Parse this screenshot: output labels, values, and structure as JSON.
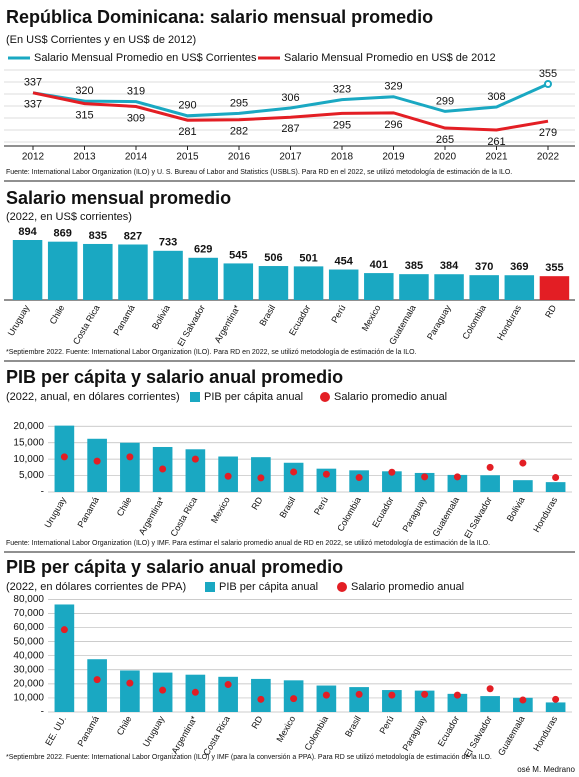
{
  "chart_data": [
    {
      "type": "line",
      "title": "República Dominicana: salario mensual promedio",
      "subtitle": "(En US$ Corrientes y en US$ de 2012)",
      "categories": [
        2012,
        2013,
        2014,
        2015,
        2016,
        2017,
        2018,
        2019,
        2020,
        2021,
        2022
      ],
      "series": [
        {
          "name": "Salario Mensual Promedio en US$ Corrientes",
          "color": "#1aa8c2",
          "values": [
            337,
            320,
            319,
            290,
            295,
            306,
            323,
            329,
            299,
            308,
            355
          ]
        },
        {
          "name": "Salario Mensual Promedio en US$ de 2012",
          "color": "#e31e24",
          "values": [
            337,
            315,
            309,
            281,
            282,
            287,
            295,
            296,
            265,
            261,
            279
          ]
        }
      ],
      "note": "Fuente: International Labor Organization (ILO) y U. S. Bureau of Labor and Statistics (USBLS). Para RD en el 2022, se utilizó metodología de estimación de la ILO."
    },
    {
      "type": "bar",
      "title": "Salario mensual promedio",
      "subtitle": "(2022, en US$ corrientes)",
      "categories": [
        "Uruguay",
        "Chile",
        "Costa Rica",
        "Panamá",
        "Bolivia",
        "El Salvador",
        "Argentina*",
        "Brasil",
        "Ecuador",
        "Perú",
        "Mexico",
        "Guatemala",
        "Paraguay",
        "Colombia",
        "Honduras",
        "RD"
      ],
      "values": [
        894,
        869,
        835,
        827,
        733,
        629,
        545,
        506,
        501,
        454,
        401,
        385,
        384,
        370,
        369,
        355
      ],
      "colors": [
        "#1aa8c2",
        "#1aa8c2",
        "#1aa8c2",
        "#1aa8c2",
        "#1aa8c2",
        "#1aa8c2",
        "#1aa8c2",
        "#1aa8c2",
        "#1aa8c2",
        "#1aa8c2",
        "#1aa8c2",
        "#1aa8c2",
        "#1aa8c2",
        "#1aa8c2",
        "#1aa8c2",
        "#e31e24"
      ],
      "note": "*Septiembre 2022. Fuente: International Labor Organization (ILO). Para RD en 2022, se utilizó metodología de estimación de la ILO."
    },
    {
      "type": "bar",
      "title": "PIB per cápita y salario anual promedio",
      "subtitle": "(2022, anual, en dólares corrientes)",
      "categories": [
        "Uruguay",
        "Panamá",
        "Chile",
        "Argentina*",
        "Costa Rica",
        "Mexico",
        "RD",
        "Brasil",
        "Perú",
        "Colombia",
        "Ecuador",
        "Paraguay",
        "Guatemala",
        "El Salvador",
        "Bolivia",
        "Honduras"
      ],
      "series": [
        {
          "name": "PIB per cápita anual",
          "type": "bar",
          "color": "#1aa8c2",
          "values": [
            20200,
            16200,
            15000,
            13700,
            13000,
            10800,
            10600,
            8900,
            7100,
            6600,
            6300,
            5800,
            5200,
            5100,
            3600,
            3000
          ]
        },
        {
          "name": "Salario promedio anual",
          "type": "scatter",
          "color": "#e31e24",
          "values": [
            10700,
            9400,
            10700,
            7000,
            10000,
            4800,
            4300,
            6100,
            5400,
            4400,
            6000,
            4600,
            4600,
            7500,
            8800,
            4400
          ]
        }
      ],
      "ylim": [
        0,
        21000
      ],
      "yticks": [
        {
          "value": 0,
          "label": "-"
        },
        {
          "value": 5000,
          "label": "5,000"
        },
        {
          "value": 10000,
          "label": "10,000"
        },
        {
          "value": 15000,
          "label": "15,000"
        },
        {
          "value": 20000,
          "label": "20,000"
        }
      ],
      "grid": true,
      "note": "Fuente: International Labor Organization (ILO) y IMF. Para estimar el salario promedio anual de RD en 2022, se utilizó metodología de estimación de la ILO."
    },
    {
      "type": "bar",
      "title": "PIB per cápita y salario anual promedio",
      "subtitle": "(2022, en dólares corrientes de PPA)",
      "categories": [
        "EE. UU.",
        "Panamá",
        "Chile",
        "Uruguay",
        "Argentina*",
        "Costa Rica",
        "RD",
        "Mexico",
        "Colombia",
        "Brasil",
        "Perú",
        "Paraguay",
        "Ecuador",
        "El Salvador",
        "Guatemala",
        "Honduras"
      ],
      "series": [
        {
          "name": "PIB per cápita anual",
          "type": "bar",
          "color": "#1aa8c2",
          "values": [
            76400,
            37500,
            29500,
            28000,
            26500,
            25000,
            23500,
            22500,
            18800,
            17700,
            15600,
            15200,
            12900,
            11300,
            10100,
            6800
          ]
        },
        {
          "name": "Salario promedio anual",
          "type": "scatter",
          "color": "#e31e24",
          "values": [
            58500,
            23000,
            20500,
            15500,
            14000,
            19500,
            9000,
            9500,
            12000,
            12500,
            12000,
            12500,
            12000,
            16500,
            8500,
            9000
          ]
        }
      ],
      "ylim": [
        0,
        81000
      ],
      "yticks": [
        {
          "value": 0,
          "label": "-"
        },
        {
          "value": 10000,
          "label": "10,000"
        },
        {
          "value": 20000,
          "label": "20,000"
        },
        {
          "value": 30000,
          "label": "30,000"
        },
        {
          "value": 40000,
          "label": "40,000"
        },
        {
          "value": 50000,
          "label": "50,000"
        },
        {
          "value": 60000,
          "label": "60,000"
        },
        {
          "value": 70000,
          "label": "70,000"
        },
        {
          "value": 80000,
          "label": "80,000"
        }
      ],
      "grid": true,
      "note": "*Septiembre 2022. Fuente: International Labor Organization (ILO) y IMF (para la conversión a PPA). Para RD se utilizó metodología de estimación de la ILO."
    }
  ],
  "credit": "osé M. Medrano"
}
